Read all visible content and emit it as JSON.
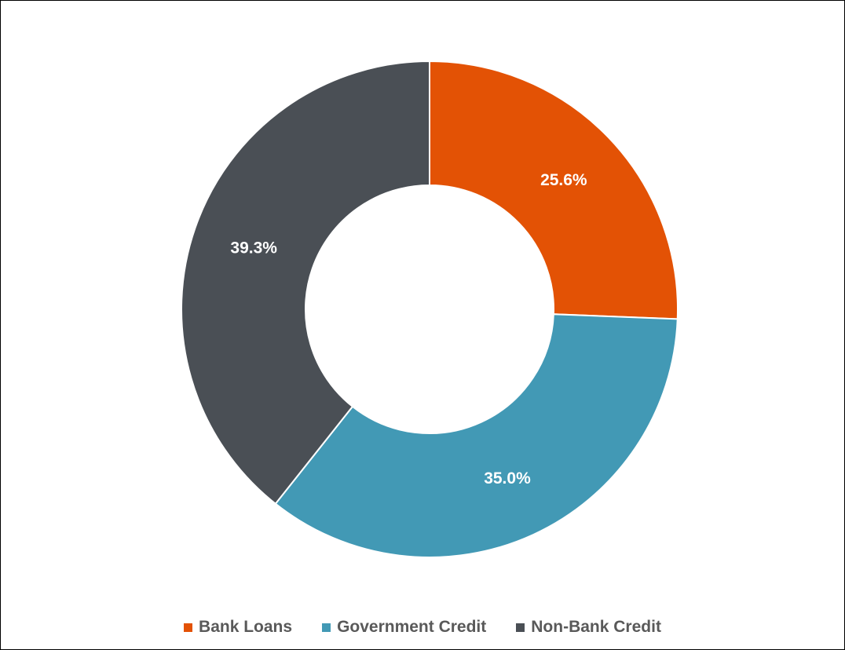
{
  "chart_data": {
    "type": "pie",
    "variant": "donut",
    "title": "",
    "categories": [
      "Bank Loans",
      "Government Credit",
      "Non-Bank Credit"
    ],
    "values": [
      25.6,
      35.0,
      39.3
    ],
    "labels": [
      "25.6%",
      "35.0%",
      "39.3%"
    ],
    "colors": [
      "#E35205",
      "#4299B5",
      "#4A4F55"
    ],
    "legend_position": "bottom",
    "start_angle": "12 o'clock, clockwise"
  },
  "legend": {
    "items": [
      {
        "label": "Bank Loans",
        "color": "#E35205"
      },
      {
        "label": "Government Credit",
        "color": "#4299B5"
      },
      {
        "label": "Non-Bank Credit",
        "color": "#4A4F55"
      }
    ]
  }
}
